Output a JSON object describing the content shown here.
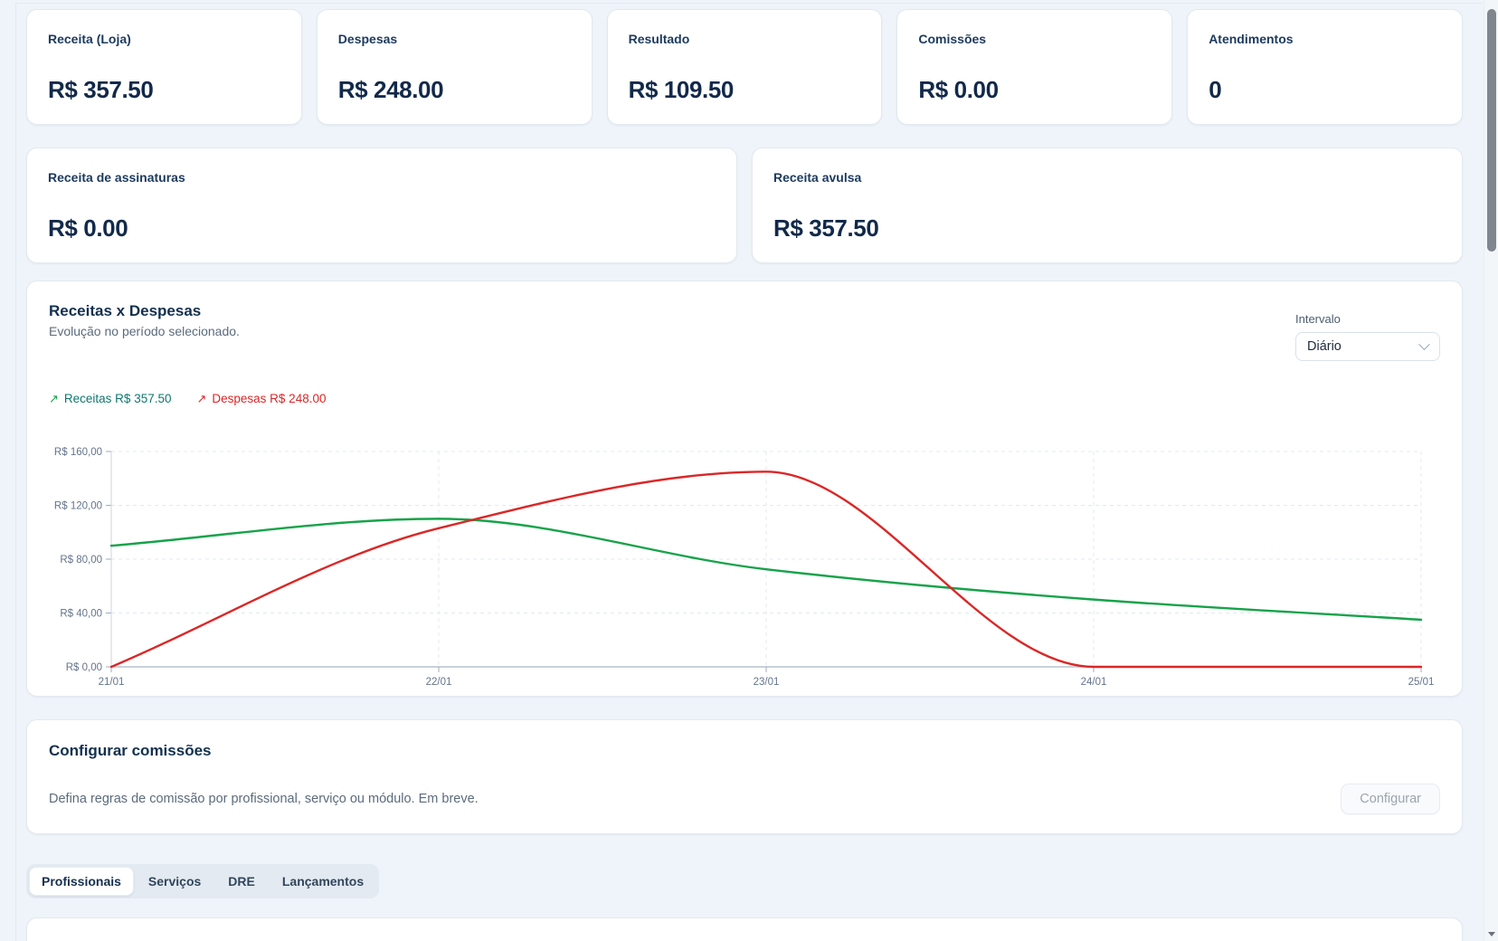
{
  "stats_row1": [
    {
      "label": "Receita (Loja)",
      "value": "R$ 357.50"
    },
    {
      "label": "Despesas",
      "value": "R$ 248.00"
    },
    {
      "label": "Resultado",
      "value": "R$ 109.50"
    },
    {
      "label": "Comissões",
      "value": "R$ 0.00"
    },
    {
      "label": "Atendimentos",
      "value": "0"
    }
  ],
  "stats_row2": [
    {
      "label": "Receita de assinaturas",
      "value": "R$ 0.00"
    },
    {
      "label": "Receita avulsa",
      "value": "R$ 357.50"
    }
  ],
  "chart_card": {
    "title": "Receitas x Despesas",
    "subtitle": "Evolução no período selecionado.",
    "interval": {
      "label": "Intervalo",
      "selected": "Diário"
    },
    "legend": [
      {
        "arrow": "↗",
        "label": "Receitas R$ 357.50",
        "text_color": "#0f766e",
        "arrow_color": "#16a34a"
      },
      {
        "arrow": "↗",
        "label": "Despesas R$ 248.00",
        "text_color": "#dc2626",
        "arrow_color": "#dc2626"
      }
    ]
  },
  "chart_data": {
    "type": "line",
    "x": [
      "21/01",
      "22/01",
      "23/01",
      "24/01",
      "25/01"
    ],
    "series": [
      {
        "name": "Receitas",
        "color": "#16a34a",
        "values": [
          90,
          110,
          72.5,
          50,
          35
        ]
      },
      {
        "name": "Despesas",
        "color": "#dc2626",
        "values": [
          0,
          103,
          145,
          0,
          0
        ]
      }
    ],
    "ylim": [
      0,
      160
    ],
    "ytick_values": [
      0,
      40,
      80,
      120,
      160
    ],
    "ytick_labels": [
      "R$ 0,00",
      "R$ 40,00",
      "R$ 80,00",
      "R$ 120,00",
      "R$ 160,00"
    ],
    "grid": "dashed",
    "curve": "monotone",
    "legend_position": "top-left"
  },
  "commissions": {
    "title": "Configurar comissões",
    "description": "Defina regras de comissão por profissional, serviço ou módulo. Em breve.",
    "button": "Configurar"
  },
  "tabs": [
    {
      "label": "Profissionais",
      "active": true
    },
    {
      "label": "Serviços",
      "active": false
    },
    {
      "label": "DRE",
      "active": false
    },
    {
      "label": "Lançamentos",
      "active": false
    }
  ],
  "colors": {
    "background": "#eef4f9",
    "receitas_line": "#16a34a",
    "despesas_line": "#dc2626",
    "text_dark": "#13304f"
  }
}
